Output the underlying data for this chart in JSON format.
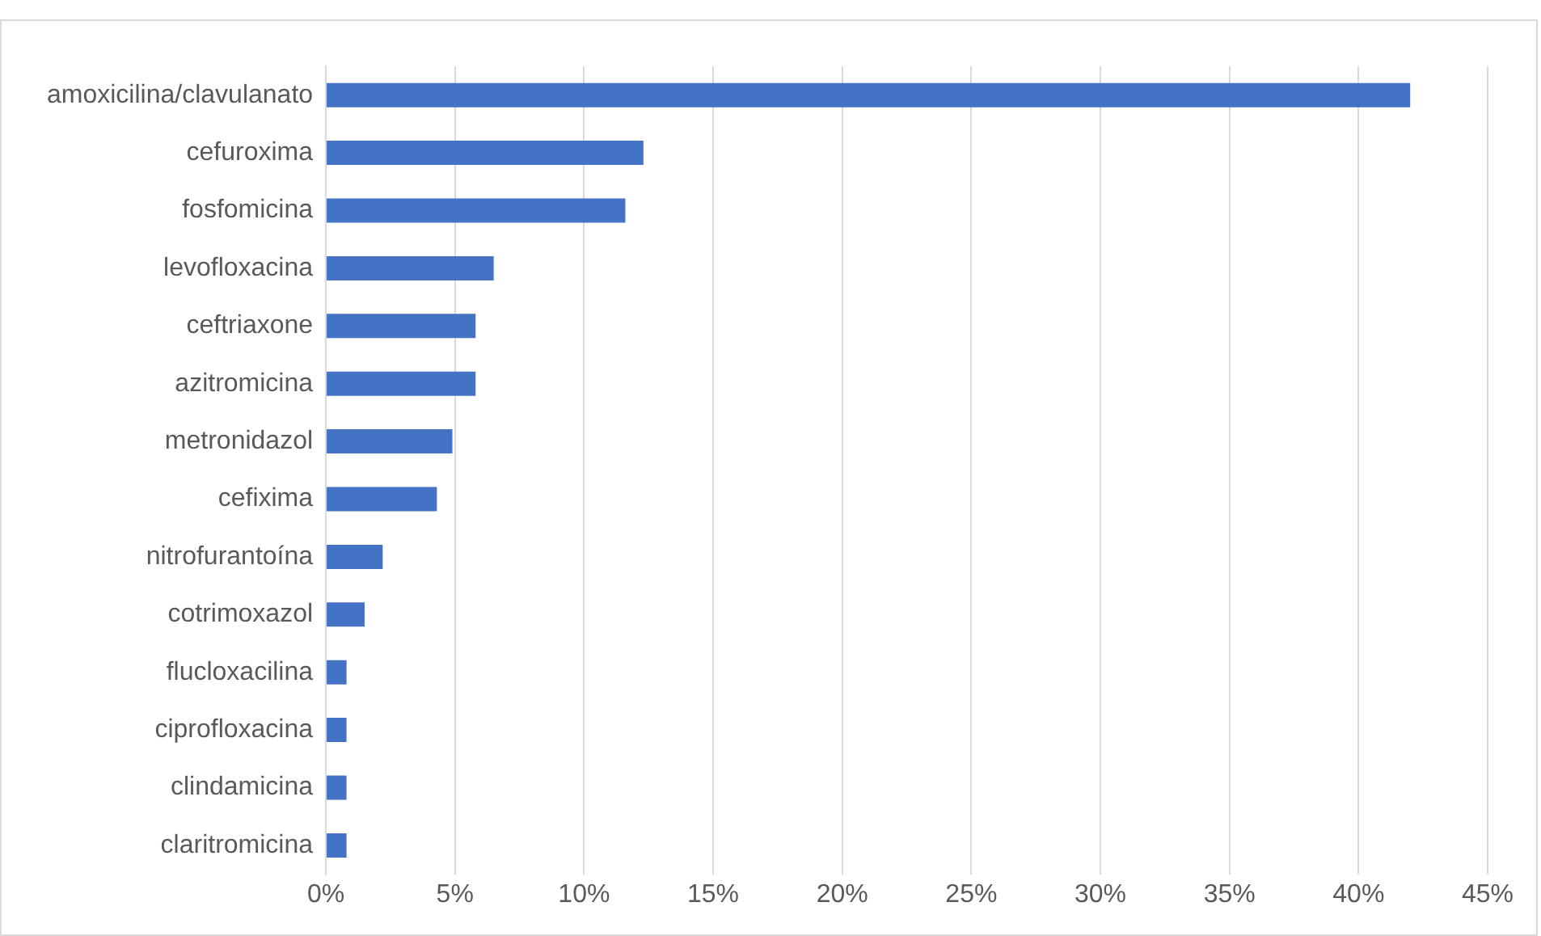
{
  "chart_data": {
    "type": "bar",
    "orientation": "horizontal",
    "categories": [
      "amoxicilina/clavulanato",
      "cefuroxima",
      "fosfomicina",
      "levofloxacina",
      "ceftriaxone",
      "azitromicina",
      "metronidazol",
      "cefixima",
      "nitrofurantoína",
      "cotrimoxazol",
      "flucloxacilina",
      "ciprofloxacina",
      "clindamicina",
      "claritromicina"
    ],
    "values": [
      42.0,
      12.3,
      11.6,
      6.5,
      5.8,
      5.8,
      4.9,
      4.3,
      2.2,
      1.5,
      0.8,
      0.8,
      0.8,
      0.8
    ],
    "color": "#4472c4",
    "xlim": [
      0,
      45
    ],
    "xticks": [
      {
        "value": 0,
        "label": "0%"
      },
      {
        "value": 5,
        "label": "5%"
      },
      {
        "value": 10,
        "label": "10%"
      },
      {
        "value": 15,
        "label": "15%"
      },
      {
        "value": 20,
        "label": "20%"
      },
      {
        "value": 25,
        "label": "25%"
      },
      {
        "value": 30,
        "label": "30%"
      },
      {
        "value": 35,
        "label": "35%"
      },
      {
        "value": 40,
        "label": "40%"
      },
      {
        "value": 45,
        "label": "45%"
      }
    ],
    "grid": "x",
    "legend": false
  }
}
